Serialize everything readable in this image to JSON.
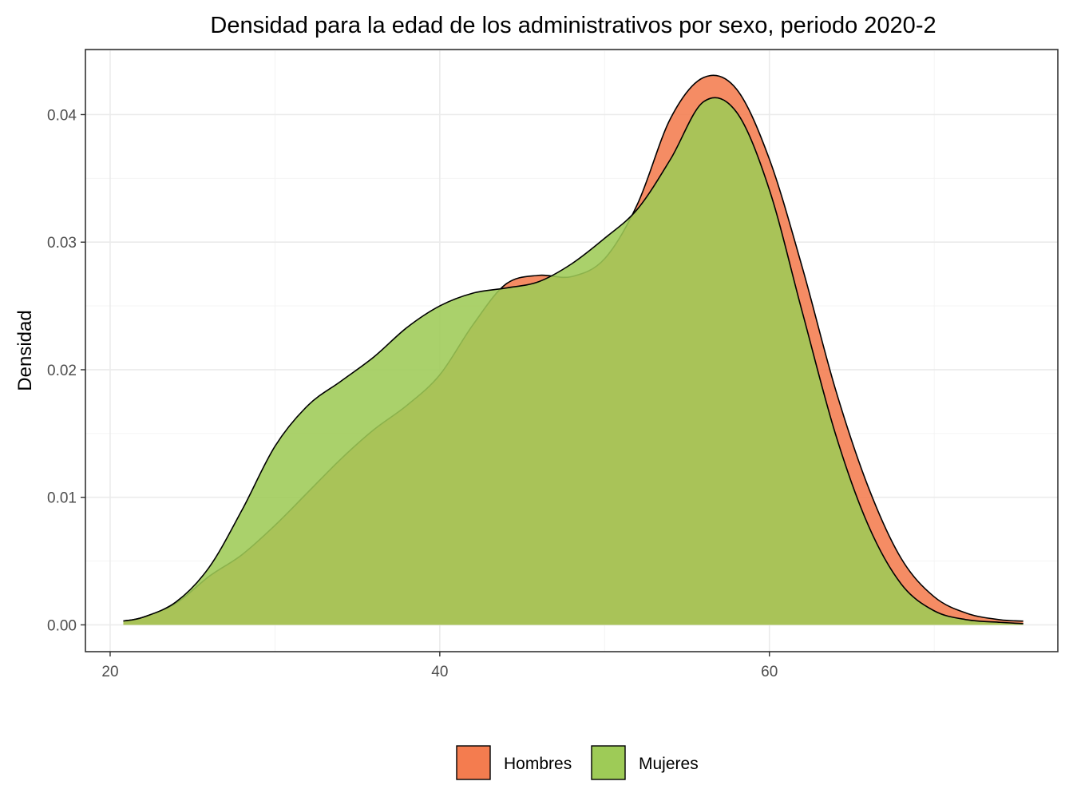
{
  "chart_data": {
    "type": "area",
    "title": "Densidad para la edad de los administrativos por sexo, periodo 2020-2",
    "xlabel": "",
    "ylabel": "Densidad",
    "xlim": [
      18.5,
      77.5
    ],
    "ylim": [
      -0.0021,
      0.0451
    ],
    "x_ticks": [
      20,
      40,
      60
    ],
    "y_ticks": [
      0.0,
      0.01,
      0.02,
      0.03,
      0.04
    ],
    "x_tick_labels": [
      "20",
      "40",
      "60"
    ],
    "y_tick_labels": [
      "0.00",
      "0.01",
      "0.02",
      "0.03",
      "0.04"
    ],
    "grid": true,
    "legend_position": "bottom",
    "series": [
      {
        "name": "Hombres",
        "color": "#f47c4f",
        "points": [
          [
            20.8,
            0.0003
          ],
          [
            22,
            0.0006
          ],
          [
            24,
            0.0017
          ],
          [
            26,
            0.0038
          ],
          [
            28,
            0.0055
          ],
          [
            30,
            0.0078
          ],
          [
            32,
            0.0104
          ],
          [
            34,
            0.013
          ],
          [
            36,
            0.0153
          ],
          [
            38,
            0.0172
          ],
          [
            40,
            0.0196
          ],
          [
            42,
            0.0235
          ],
          [
            44,
            0.0267
          ],
          [
            46,
            0.0274
          ],
          [
            48,
            0.0273
          ],
          [
            50,
            0.0287
          ],
          [
            52,
            0.033
          ],
          [
            54,
            0.0397
          ],
          [
            56,
            0.0429
          ],
          [
            58,
            0.042
          ],
          [
            60,
            0.0365
          ],
          [
            62,
            0.028
          ],
          [
            64,
            0.0185
          ],
          [
            66,
            0.0108
          ],
          [
            68,
            0.0052
          ],
          [
            70,
            0.0022
          ],
          [
            72,
            0.0009
          ],
          [
            74,
            0.0004
          ],
          [
            75.4,
            0.0003
          ]
        ]
      },
      {
        "name": "Mujeres",
        "color": "#9ecb57",
        "points": [
          [
            20.8,
            0.0003
          ],
          [
            22,
            0.0006
          ],
          [
            24,
            0.0018
          ],
          [
            26,
            0.0045
          ],
          [
            28,
            0.009
          ],
          [
            30,
            0.014
          ],
          [
            32,
            0.0172
          ],
          [
            34,
            0.0191
          ],
          [
            36,
            0.021
          ],
          [
            38,
            0.0233
          ],
          [
            40,
            0.025
          ],
          [
            42,
            0.026
          ],
          [
            44,
            0.0264
          ],
          [
            46,
            0.0269
          ],
          [
            48,
            0.0283
          ],
          [
            50,
            0.0303
          ],
          [
            52,
            0.0326
          ],
          [
            54,
            0.0365
          ],
          [
            56,
            0.041
          ],
          [
            58,
            0.0402
          ],
          [
            60,
            0.0341
          ],
          [
            62,
            0.0245
          ],
          [
            64,
            0.015
          ],
          [
            66,
            0.0078
          ],
          [
            68,
            0.0032
          ],
          [
            70,
            0.0011
          ],
          [
            72,
            0.0004
          ],
          [
            74,
            0.0002
          ],
          [
            75.4,
            0.0001
          ]
        ]
      }
    ]
  }
}
